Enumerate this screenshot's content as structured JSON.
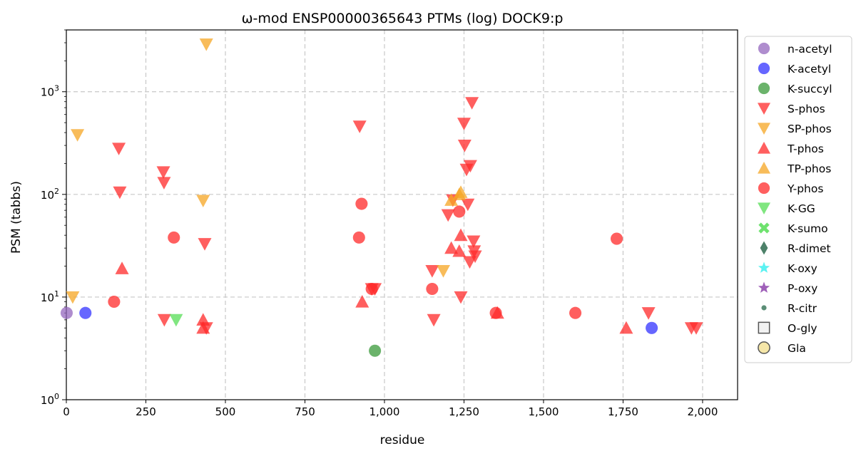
{
  "chart_data": {
    "type": "scatter",
    "title": "ω-mod ENSP00000365643 PTMs (log) DOCK9:p",
    "xlabel": "residue",
    "ylabel": "PSM (tabbs)",
    "xlim": [
      0,
      2110
    ],
    "ylim": [
      1,
      4000
    ],
    "yscale": "log",
    "grid": true,
    "legend_position": "right-outside",
    "xticks": [
      {
        "value": 0,
        "label": "0"
      },
      {
        "value": 250,
        "label": "250"
      },
      {
        "value": 500,
        "label": "500"
      },
      {
        "value": 750,
        "label": "750"
      },
      {
        "value": 1000,
        "label": "1,000"
      },
      {
        "value": 1250,
        "label": "1,250"
      },
      {
        "value": 1500,
        "label": "1,500"
      },
      {
        "value": 1750,
        "label": "1,750"
      },
      {
        "value": 2000,
        "label": "2,000"
      }
    ],
    "yticks": [
      {
        "value": 1,
        "base": "10",
        "exp": "0"
      },
      {
        "value": 10,
        "base": "10",
        "exp": "1"
      },
      {
        "value": 100,
        "base": "10",
        "exp": "2"
      },
      {
        "value": 1000,
        "base": "10",
        "exp": "3"
      }
    ],
    "series": [
      {
        "name": "n-acetyl",
        "marker": "circle",
        "color": "#9467bd",
        "points": [
          [
            1,
            7
          ]
        ]
      },
      {
        "name": "K-acetyl",
        "marker": "circle",
        "color": "#3333ff",
        "points": [
          [
            60,
            7
          ],
          [
            1840,
            5
          ]
        ]
      },
      {
        "name": "K-succyl",
        "marker": "circle",
        "color": "#3a9a3a",
        "points": [
          [
            970,
            3
          ]
        ]
      },
      {
        "name": "S-phos",
        "marker": "triangle-down",
        "color": "#ff2a2a",
        "points": [
          [
            165,
            280
          ],
          [
            168,
            105
          ],
          [
            305,
            165
          ],
          [
            307,
            130
          ],
          [
            308,
            6
          ],
          [
            435,
            33
          ],
          [
            440,
            5
          ],
          [
            922,
            460
          ],
          [
            960,
            12
          ],
          [
            970,
            12
          ],
          [
            1150,
            18
          ],
          [
            1155,
            6
          ],
          [
            1200,
            63
          ],
          [
            1215,
            88
          ],
          [
            1240,
            10
          ],
          [
            1250,
            490
          ],
          [
            1252,
            300
          ],
          [
            1258,
            175
          ],
          [
            1262,
            80
          ],
          [
            1270,
            190
          ],
          [
            1275,
            780
          ],
          [
            1268,
            22
          ],
          [
            1280,
            35
          ],
          [
            1282,
            28
          ],
          [
            1285,
            25
          ],
          [
            1830,
            7
          ],
          [
            1965,
            5
          ],
          [
            1980,
            5
          ]
        ]
      },
      {
        "name": "SP-phos",
        "marker": "triangle-down",
        "color": "#f5a623",
        "points": [
          [
            20,
            10
          ],
          [
            35,
            380
          ],
          [
            430,
            87
          ],
          [
            440,
            2900
          ],
          [
            1185,
            18
          ]
        ]
      },
      {
        "name": "T-phos",
        "marker": "triangle-up",
        "color": "#ff2a2a",
        "points": [
          [
            175,
            19
          ],
          [
            430,
            6
          ],
          [
            430,
            5
          ],
          [
            930,
            9
          ],
          [
            1210,
            30
          ],
          [
            1235,
            28
          ],
          [
            1240,
            40
          ],
          [
            1355,
            7
          ],
          [
            1760,
            5
          ]
        ]
      },
      {
        "name": "TP-phos",
        "marker": "triangle-up",
        "color": "#f5a623",
        "points": [
          [
            1210,
            88
          ],
          [
            1235,
            100
          ],
          [
            1240,
            105
          ]
        ]
      },
      {
        "name": "Y-phos",
        "marker": "circle",
        "color": "#ff2a2a",
        "points": [
          [
            150,
            9
          ],
          [
            338,
            38
          ],
          [
            920,
            38
          ],
          [
            928,
            81
          ],
          [
            960,
            12
          ],
          [
            1150,
            12
          ],
          [
            1235,
            68
          ],
          [
            1350,
            7
          ],
          [
            1600,
            7
          ],
          [
            1730,
            37
          ]
        ]
      },
      {
        "name": "K-GG",
        "marker": "triangle-down",
        "color": "#55dd55",
        "points": [
          [
            345,
            6
          ]
        ]
      },
      {
        "name": "K-sumo",
        "marker": "x",
        "color": "#55dd55",
        "points": []
      },
      {
        "name": "R-dimet",
        "marker": "diamond",
        "color": "#2e6b4f",
        "points": []
      },
      {
        "name": "K-oxy",
        "marker": "star",
        "color": "#40f0f0",
        "points": []
      },
      {
        "name": "P-oxy",
        "marker": "star",
        "color": "#8e44ad",
        "points": []
      },
      {
        "name": "R-citr",
        "marker": "small-circle",
        "color": "#3e7a5e",
        "points": []
      },
      {
        "name": "O-gly",
        "marker": "square-open",
        "color": "#555555",
        "points": []
      },
      {
        "name": "Gla",
        "marker": "circle-open",
        "color": "#f5e6a8",
        "points": []
      }
    ]
  }
}
